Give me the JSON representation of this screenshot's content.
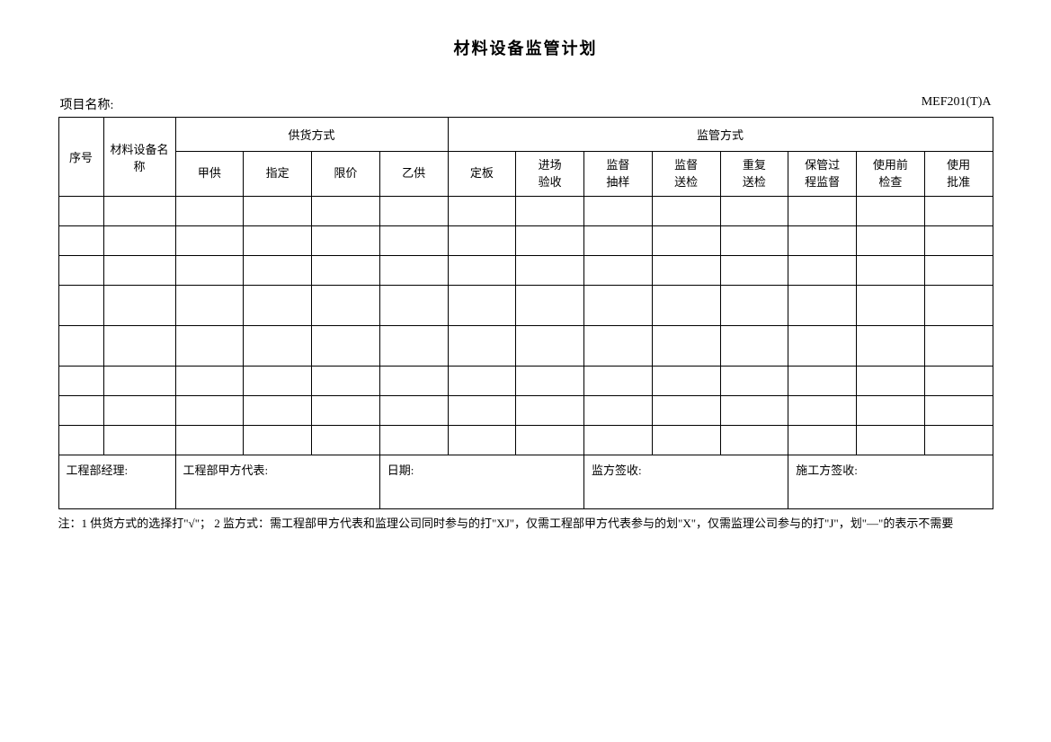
{
  "title": "材料设备监管计划",
  "project_label": "项目名称:",
  "form_code": "MEF201(T)A",
  "table": {
    "headers": {
      "seq": "序号",
      "material_name": "材料设备名称",
      "supply_group": "供货方式",
      "supervision_group": "监管方式",
      "supply_cols": [
        "甲供",
        "指定",
        "限价",
        "乙供"
      ],
      "supervision_cols": [
        "定板",
        "进场验收",
        "监督抽样",
        "监督送检",
        "重复送检",
        "保管过程监督",
        "使用前检查",
        "使用批准"
      ]
    },
    "data_row_count": 8,
    "tall_row_indices": [
      3,
      4
    ]
  },
  "signatures": {
    "manager": "工程部经理:",
    "rep": "工程部甲方代表:",
    "date": "日期:",
    "supervisor": "监方签收:",
    "contractor": "施工方签收:"
  },
  "footnote": "注：1 供货方式的选择打\"√\"； 2 监方式：需工程部甲方代表和监理公司同时参与的打\"XJ\"，仅需工程部甲方代表参与的划\"X\"，仅需监理公司参与的打\"J\"，划\"—\"的表示不需要",
  "styles": {
    "background_color": "#ffffff",
    "text_color": "#000000",
    "border_color": "#000000",
    "title_fontsize": 18,
    "body_fontsize": 13,
    "header_fontsize": 14
  }
}
